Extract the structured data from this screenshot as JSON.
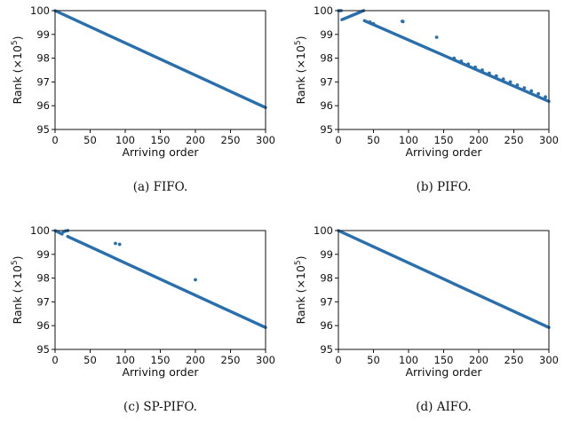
{
  "colors": {
    "series": "#2a6fad",
    "axis": "#111111"
  },
  "chart_data": [
    {
      "type": "scatter",
      "caption": "(a)  FIFO.",
      "xlabel": "Arriving order",
      "ylabel_text": "Rank (×10",
      "ylabel_exp": "5",
      "ylabel_close": ")",
      "xlim": [
        0,
        300
      ],
      "ylim": [
        95,
        100
      ],
      "xticks": [
        0,
        50,
        100,
        150,
        200,
        250,
        300
      ],
      "yticks": [
        95,
        96,
        97,
        98,
        99,
        100
      ],
      "segments": [
        {
          "x": [
            0,
            300
          ],
          "y": [
            100.0,
            95.92
          ]
        }
      ],
      "points": []
    },
    {
      "type": "scatter",
      "caption": "(b)  PIFO.",
      "xlabel": "Arriving order",
      "ylabel_text": "Rank (×10",
      "ylabel_exp": "5",
      "ylabel_close": ")",
      "xlim": [
        0,
        300
      ],
      "ylim": [
        95,
        100
      ],
      "xticks": [
        0,
        50,
        100,
        150,
        200,
        250,
        300
      ],
      "yticks": [
        95,
        96,
        97,
        98,
        99,
        100
      ],
      "segments": [
        {
          "x": [
            0,
            4
          ],
          "y": [
            100.0,
            100.0
          ]
        },
        {
          "x": [
            5,
            36
          ],
          "y": [
            99.62,
            100.0
          ]
        },
        {
          "x": [
            37,
            300
          ],
          "y": [
            99.58,
            96.18
          ]
        }
      ],
      "points": [
        {
          "x": 91,
          "y": 99.55
        },
        {
          "x": 92,
          "y": 99.54
        },
        {
          "x": 140,
          "y": 98.88
        },
        {
          "x": 45,
          "y": 99.52
        },
        {
          "x": 50,
          "y": 99.45
        },
        {
          "x": 165,
          "y": 98.0
        },
        {
          "x": 175,
          "y": 97.87
        },
        {
          "x": 185,
          "y": 97.75
        },
        {
          "x": 195,
          "y": 97.62
        },
        {
          "x": 205,
          "y": 97.5
        },
        {
          "x": 215,
          "y": 97.37
        },
        {
          "x": 225,
          "y": 97.25
        },
        {
          "x": 235,
          "y": 97.12
        },
        {
          "x": 245,
          "y": 97.0
        },
        {
          "x": 255,
          "y": 96.87
        },
        {
          "x": 265,
          "y": 96.75
        },
        {
          "x": 275,
          "y": 96.62
        },
        {
          "x": 285,
          "y": 96.5
        },
        {
          "x": 295,
          "y": 96.37
        }
      ]
    },
    {
      "type": "scatter",
      "caption": "(c)  SP-PIFO.",
      "xlabel": "Arriving order",
      "ylabel_text": "Rank (×10",
      "ylabel_exp": "5",
      "ylabel_close": ")",
      "xlim": [
        0,
        300
      ],
      "ylim": [
        95,
        100
      ],
      "xticks": [
        0,
        50,
        100,
        150,
        200,
        250,
        300
      ],
      "yticks": [
        95,
        96,
        97,
        98,
        99,
        100
      ],
      "segments": [
        {
          "x": [
            0,
            10
          ],
          "y": [
            100.0,
            99.85
          ]
        },
        {
          "x": [
            18,
            300
          ],
          "y": [
            99.75,
            95.92
          ]
        }
      ],
      "points": [
        {
          "x": 12,
          "y": 99.95
        },
        {
          "x": 15,
          "y": 99.98
        },
        {
          "x": 18,
          "y": 100.0
        },
        {
          "x": 86,
          "y": 99.46
        },
        {
          "x": 92,
          "y": 99.42
        },
        {
          "x": 200,
          "y": 97.93
        }
      ]
    },
    {
      "type": "scatter",
      "caption": "(d)  AIFO.",
      "xlabel": "Arriving order",
      "ylabel_text": "Rank (×10",
      "ylabel_exp": "5",
      "ylabel_close": ")",
      "xlim": [
        0,
        300
      ],
      "ylim": [
        95,
        100
      ],
      "xticks": [
        0,
        50,
        100,
        150,
        200,
        250,
        300
      ],
      "yticks": [
        95,
        96,
        97,
        98,
        99,
        100
      ],
      "segments": [
        {
          "x": [
            0,
            300
          ],
          "y": [
            100.0,
            95.92
          ]
        }
      ],
      "points": []
    }
  ]
}
